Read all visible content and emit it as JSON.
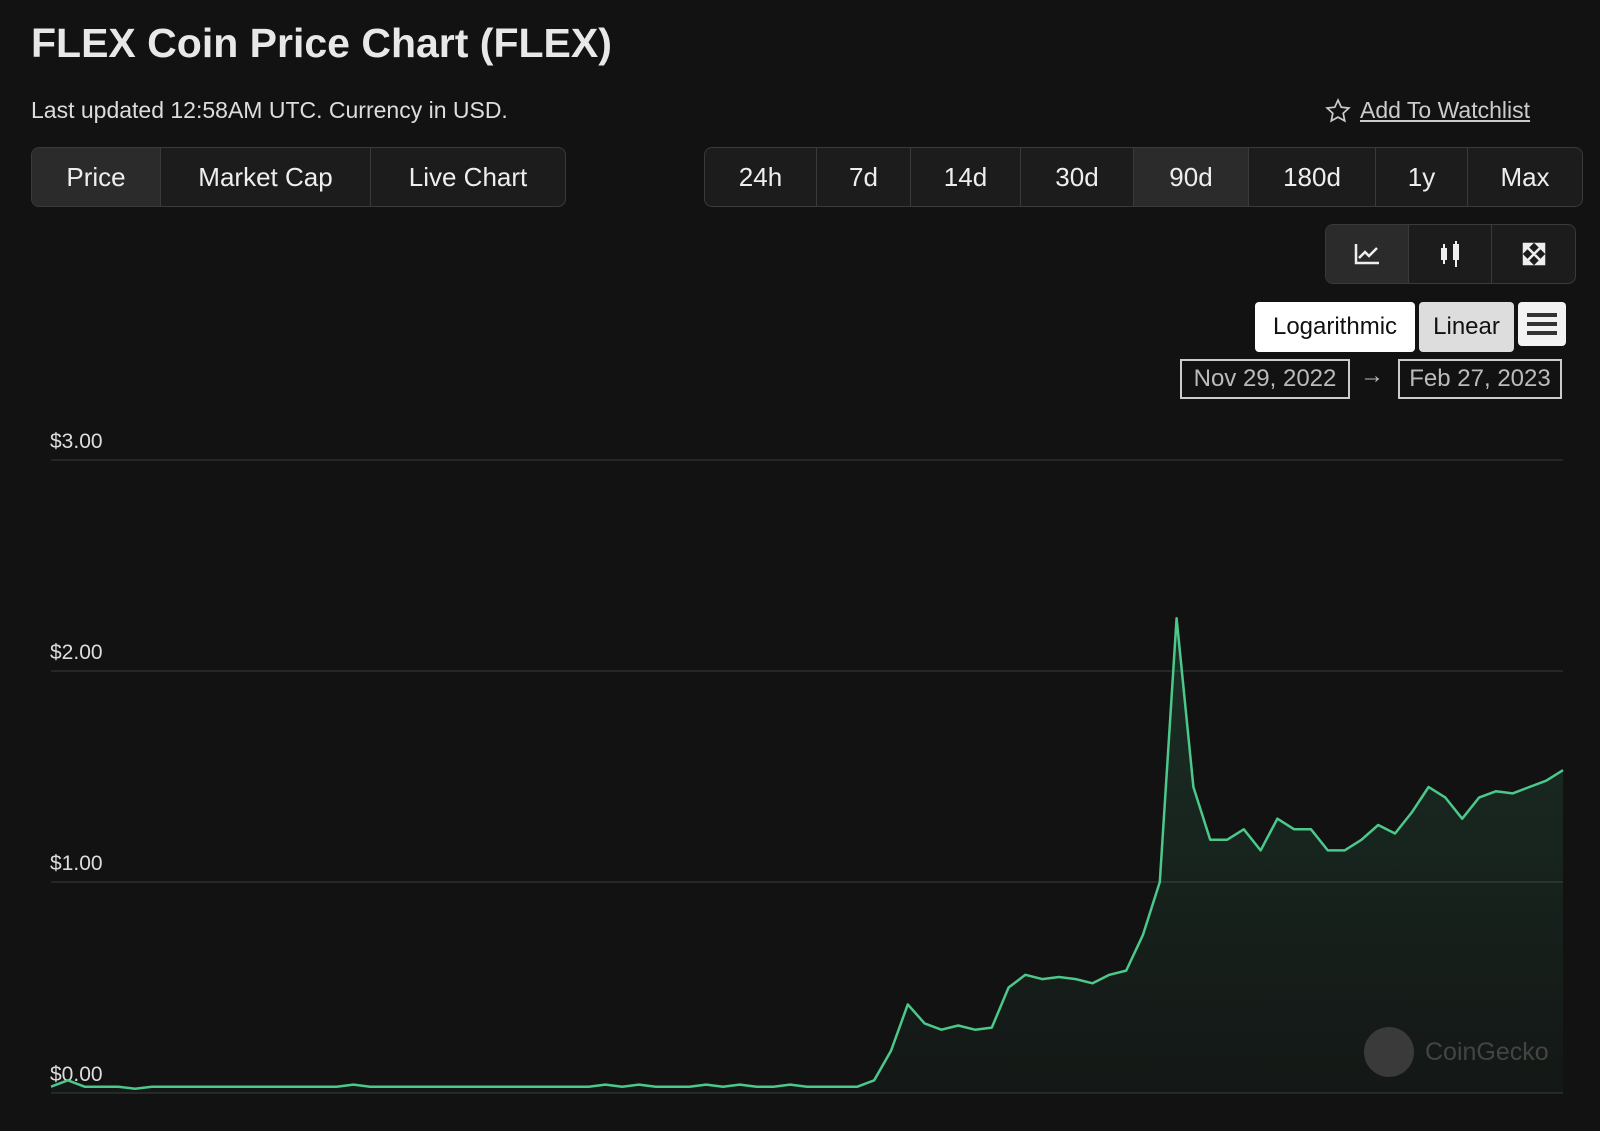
{
  "header": {
    "title": "FLEX Coin Price Chart (FLEX)",
    "subtitle": "Last updated 12:58AM UTC. Currency in USD.",
    "watchlist": "Add To Watchlist"
  },
  "tabs": [
    "Price",
    "Market Cap",
    "Live Chart"
  ],
  "ranges": [
    "24h",
    "7d",
    "14d",
    "30d",
    "90d",
    "180d",
    "1y",
    "Max"
  ],
  "scale_buttons": [
    "Logarithmic",
    "Linear"
  ],
  "date_range": {
    "from": "Nov 29, 2022",
    "to": "Feb 27, 2023"
  },
  "watermark": "CoinGecko",
  "chart_data": {
    "type": "area",
    "color": "#4bc88a",
    "grid": true,
    "ylim": [
      0,
      3
    ],
    "yticks": [
      {
        "value": 0,
        "label": "$0.00"
      },
      {
        "value": 1,
        "label": "$1.00"
      },
      {
        "value": 2,
        "label": "$2.00"
      },
      {
        "value": 3,
        "label": "$3.00"
      }
    ],
    "values": [
      0.03,
      0.06,
      0.03,
      0.03,
      0.03,
      0.02,
      0.03,
      0.03,
      0.03,
      0.03,
      0.03,
      0.03,
      0.03,
      0.03,
      0.03,
      0.03,
      0.03,
      0.03,
      0.04,
      0.03,
      0.03,
      0.03,
      0.03,
      0.03,
      0.03,
      0.03,
      0.03,
      0.03,
      0.03,
      0.03,
      0.03,
      0.03,
      0.03,
      0.04,
      0.03,
      0.04,
      0.03,
      0.03,
      0.03,
      0.04,
      0.03,
      0.04,
      0.03,
      0.03,
      0.04,
      0.03,
      0.03,
      0.03,
      0.03,
      0.06,
      0.2,
      0.42,
      0.33,
      0.3,
      0.32,
      0.3,
      0.31,
      0.5,
      0.56,
      0.54,
      0.55,
      0.54,
      0.52,
      0.56,
      0.58,
      0.75,
      1.0,
      2.25,
      1.45,
      1.2,
      1.2,
      1.25,
      1.15,
      1.3,
      1.25,
      1.25,
      1.15,
      1.15,
      1.2,
      1.27,
      1.23,
      1.33,
      1.45,
      1.4,
      1.3,
      1.4,
      1.43,
      1.42,
      1.45,
      1.48,
      1.53
    ]
  }
}
